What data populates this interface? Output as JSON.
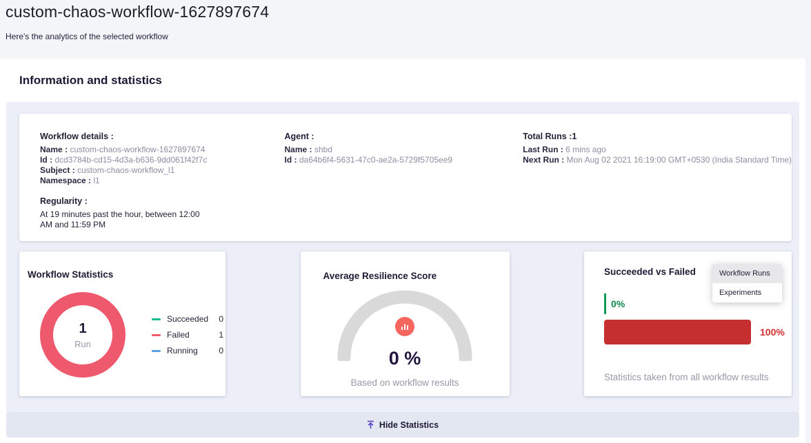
{
  "header": {
    "title": "custom-chaos-workflow-1627897674",
    "subtitle": "Here's the analytics of the selected workflow"
  },
  "section": {
    "title": "Information and statistics"
  },
  "info": {
    "workflow": {
      "heading": "Workflow details :",
      "fields": [
        {
          "label": "Name :",
          "value": "custom-chaos-workflow-1627897674"
        },
        {
          "label": "Id :",
          "value": "dcd3784b-cd15-4d3a-b636-9dd061f42f7c"
        },
        {
          "label": "Subject :",
          "value": "custom-chaos-workflow_l1"
        },
        {
          "label": "Namespace :",
          "value": "l1"
        }
      ]
    },
    "regularity": {
      "heading": "Regularity :",
      "text": "At 19 minutes past the hour, between 12:00 AM and 11:59 PM"
    },
    "agent": {
      "heading": "Agent :",
      "fields": [
        {
          "label": "Name :",
          "value": "shbd"
        },
        {
          "label": "Id :",
          "value": "da64b6f4-5631-47c0-ae2a-5729f5705ee9"
        }
      ]
    },
    "runs": {
      "heading": "Total Runs :1",
      "fields": [
        {
          "label": "Last Run :",
          "value": "6 mins ago"
        },
        {
          "label": "Next Run :",
          "value": "Mon Aug 02 2021 16:19:00 GMT+0530 (India Standard Time)"
        }
      ]
    }
  },
  "stats_card": {
    "title": "Workflow Statistics",
    "center_value": "1",
    "center_label": "Run",
    "legend": [
      {
        "label": "Succeeded",
        "value": "0",
        "color": "#16BE8D"
      },
      {
        "label": "Failed",
        "value": "1",
        "color": "#EF5B6D"
      },
      {
        "label": "Running",
        "value": "0",
        "color": "#57A2E2"
      }
    ]
  },
  "resilience_card": {
    "title": "Average Resilience Score",
    "score": "0 %",
    "caption": "Based on workflow results"
  },
  "comparison_card": {
    "title": "Succeeded vs Failed",
    "succeeded_pct": "0%",
    "failed_pct": "100%",
    "failed_bar_pct": 100,
    "caption": "Statistics taken from all workflow results",
    "menu": {
      "items": [
        {
          "label": "Workflow Runs"
        },
        {
          "label": "Experiments"
        }
      ]
    }
  },
  "footer": {
    "hide_label": "Hide Statistics"
  },
  "colors": {
    "donut_failed": "#EE596D",
    "gauge_track": "#D9D9D9",
    "gauge_icon": "#F7655F",
    "succeeded_green": "#0B9B57",
    "failed_red": "#C62F2F",
    "accent_purple": "#5E44C2",
    "panel_bg": "#ECEFF7"
  }
}
